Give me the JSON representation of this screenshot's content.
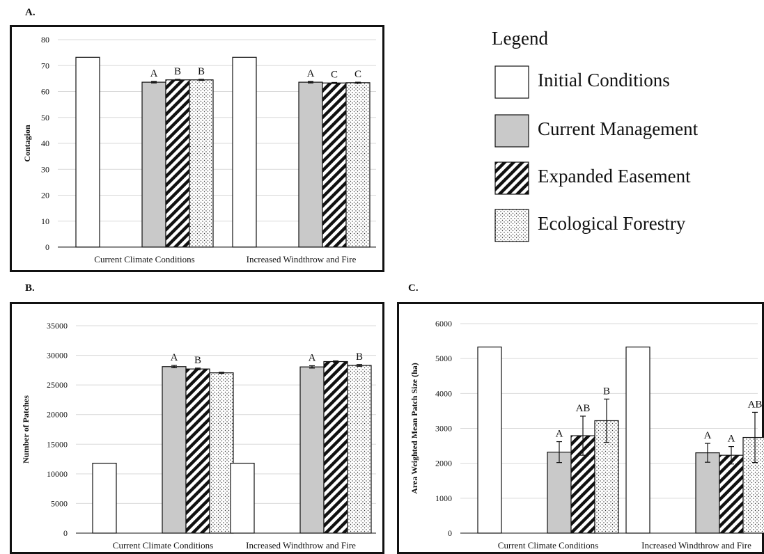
{
  "legend": {
    "title": "Legend",
    "items": [
      {
        "label": "Initial Conditions",
        "pattern": "white"
      },
      {
        "label": "Current Management",
        "pattern": "gray"
      },
      {
        "label": "Expanded Easement",
        "pattern": "hatch"
      },
      {
        "label": "Ecological Forestry",
        "pattern": "dots"
      }
    ]
  },
  "colors": {
    "gray_fill": "#c9c9c9",
    "stroke": "#111111",
    "grid": "#d9d9d9"
  },
  "chart_data": [
    {
      "panel": "A.",
      "type": "bar",
      "ylabel": "Contagion",
      "xlabel": "",
      "ylim": [
        0,
        80
      ],
      "yticks": [
        0,
        10,
        20,
        30,
        40,
        50,
        60,
        70,
        80
      ],
      "categories": [
        "Current Climate Conditions",
        "Increased Windthrow and Fire"
      ],
      "grid": true,
      "series": [
        {
          "name": "Initial Conditions",
          "values": [
            73.2,
            73.2
          ],
          "errors": [
            0,
            0
          ],
          "labels": [
            "",
            ""
          ]
        },
        {
          "name": "Current Management",
          "values": [
            63.6,
            63.6
          ],
          "errors": [
            0.3,
            0.3
          ],
          "labels": [
            "A",
            "A"
          ]
        },
        {
          "name": "Expanded Easement",
          "values": [
            64.5,
            63.3
          ],
          "errors": [
            0.2,
            0.2
          ],
          "labels": [
            "B",
            "C"
          ]
        },
        {
          "name": "Ecological Forestry",
          "values": [
            64.5,
            63.4
          ],
          "errors": [
            0.2,
            0.2
          ],
          "labels": [
            "B",
            "C"
          ]
        }
      ]
    },
    {
      "panel": "B.",
      "type": "bar",
      "ylabel": "Number of Patches",
      "xlabel": "",
      "ylim": [
        0,
        35000
      ],
      "yticks": [
        0,
        5000,
        10000,
        15000,
        20000,
        25000,
        30000,
        35000
      ],
      "categories": [
        "Current Climate Conditions",
        "Increased Windthrow and Fire"
      ],
      "grid": true,
      "series": [
        {
          "name": "Initial Conditions",
          "values": [
            11800,
            11800
          ],
          "errors": [
            0,
            0
          ],
          "labels": [
            "",
            ""
          ]
        },
        {
          "name": "Current Management",
          "values": [
            28100,
            28050
          ],
          "errors": [
            200,
            200
          ],
          "labels": [
            "A",
            "A"
          ]
        },
        {
          "name": "Expanded Easement",
          "values": [
            27700,
            28950
          ],
          "errors": [
            150,
            120
          ],
          "labels": [
            "B",
            ""
          ]
        },
        {
          "name": "Ecological Forestry",
          "values": [
            27050,
            28300
          ],
          "errors": [
            100,
            150
          ],
          "labels": [
            "",
            "B"
          ]
        }
      ]
    },
    {
      "panel": "C.",
      "type": "bar",
      "ylabel": "Area Weighted Mean Patch Size (ha)",
      "xlabel": "",
      "ylim": [
        0,
        6000
      ],
      "yticks": [
        0,
        1000,
        2000,
        3000,
        4000,
        5000,
        6000
      ],
      "categories": [
        "Current Climate Conditions",
        "Increased Windthrow and Fire"
      ],
      "grid": true,
      "series": [
        {
          "name": "Initial Conditions",
          "values": [
            5330,
            5330
          ],
          "errors": [
            0,
            0
          ],
          "labels": [
            "",
            ""
          ]
        },
        {
          "name": "Current Management",
          "values": [
            2320,
            2300
          ],
          "errors": [
            300,
            270
          ],
          "labels": [
            "A",
            "A"
          ]
        },
        {
          "name": "Expanded Easement",
          "values": [
            2790,
            2230
          ],
          "errors": [
            560,
            250
          ],
          "labels": [
            "AB",
            "A"
          ]
        },
        {
          "name": "Ecological Forestry",
          "values": [
            3220,
            2740
          ],
          "errors": [
            620,
            720
          ],
          "labels": [
            "B",
            "AB"
          ]
        }
      ]
    }
  ]
}
